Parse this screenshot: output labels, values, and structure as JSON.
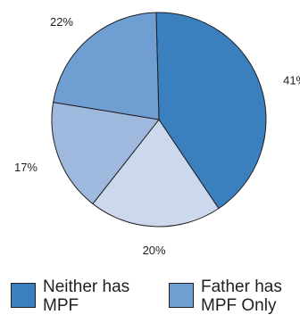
{
  "chart_data": {
    "type": "pie",
    "title": "",
    "slices": [
      {
        "label": "41%",
        "value": 41,
        "color": "#3a7fbe"
      },
      {
        "label": "20%",
        "value": 20,
        "color": "#ccd8ec"
      },
      {
        "label": "17%",
        "value": 17,
        "color": "#9fb8de"
      },
      {
        "label": "22%",
        "value": 22,
        "color": "#6f9ed2"
      }
    ],
    "legend": [
      {
        "label": "Neither has MPF",
        "color": "#3a7fbe"
      },
      {
        "label": "Father has MPF Only",
        "color": "#6f9ed2"
      }
    ],
    "legend_placement": "bottom"
  }
}
